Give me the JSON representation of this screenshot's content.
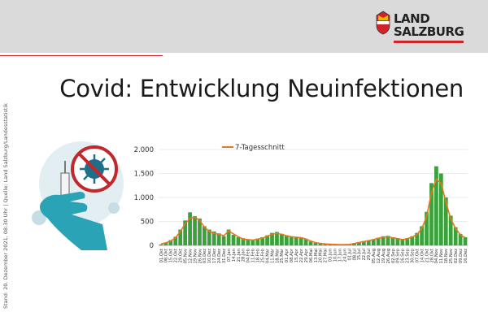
{
  "logo": {
    "line1": "LAND",
    "line2": "SALZBURG"
  },
  "title": "Covid: Entwicklung Neuinfektionen",
  "side_note": "Stand: 20. Dezember  2021, 08:30 Uhr | Quelle: Land Salzburg/Landesstatistik",
  "colors": {
    "bars": "#3aa23a",
    "line": "#e87722",
    "header": "#dadada",
    "brand_red": "#d2232a"
  },
  "chart_data": {
    "type": "bar",
    "title": "",
    "legend": [
      "7-Tagesschnitt"
    ],
    "legend_position": "top",
    "ylim": [
      0,
      2000
    ],
    "yticks": [
      0,
      500,
      1000,
      1500,
      2000
    ],
    "ytick_labels": [
      "0",
      "500",
      "1.000",
      "1.500",
      "2.000"
    ],
    "xlabels": [
      "01.Okt",
      "08.Okt",
      "15.Okt",
      "22.Okt",
      "29.Okt",
      "05.Nov",
      "12.Nov",
      "19.Nov",
      "26.Nov",
      "03.Dez",
      "10.Dez",
      "17.Dez",
      "24.Dez",
      "31.Dez",
      "07.Jan",
      "14.Jan",
      "21.Jan",
      "28.Jan",
      "04.Feb",
      "11.Feb",
      "18.Feb",
      "25.Feb",
      "04.Mar",
      "11.Mar",
      "18.Mar",
      "25.Mar",
      "01.Apr",
      "08.Apr",
      "15.Apr",
      "22.Apr",
      "29.Apr",
      "06.Mai",
      "13.Mai",
      "20.Mai",
      "27.Mai",
      "03.Jun",
      "10.Jun",
      "17.Jun",
      "24.Jun",
      "01.Jul",
      "08.Jul",
      "15.Jul",
      "22.Jul",
      "29.Jul",
      "05.Aug",
      "12.Aug",
      "19.Aug",
      "26.Aug",
      "02.Sep",
      "09.Sep",
      "16.Sep",
      "23.Sep",
      "30.Sep",
      "07.Okt",
      "14.Okt",
      "21.Okt",
      "28.Okt",
      "04.Nov",
      "11.Nov",
      "18.Nov",
      "25.Nov",
      "02.Dez",
      "09.Dez",
      "16.Dez"
    ],
    "series": [
      {
        "name": "7-Tagesschnitt",
        "kind": "line",
        "values": [
          30,
          55,
          90,
          160,
          290,
          450,
          560,
          590,
          520,
          380,
          290,
          250,
          230,
          200,
          300,
          240,
          180,
          130,
          120,
          110,
          130,
          150,
          190,
          230,
          250,
          230,
          200,
          180,
          170,
          160,
          130,
          90,
          60,
          40,
          30,
          25,
          20,
          15,
          15,
          20,
          40,
          60,
          80,
          100,
          120,
          150,
          170,
          180,
          160,
          140,
          120,
          140,
          170,
          230,
          350,
          600,
          1100,
          1380,
          1300,
          900,
          550,
          350,
          220,
          160
        ]
      },
      {
        "name": "",
        "kind": "bar",
        "values": [
          20,
          60,
          110,
          180,
          330,
          520,
          690,
          610,
          560,
          400,
          330,
          290,
          250,
          190,
          330,
          220,
          170,
          150,
          130,
          120,
          140,
          170,
          210,
          260,
          280,
          240,
          210,
          190,
          180,
          170,
          140,
          80,
          50,
          35,
          25,
          20,
          15,
          10,
          12,
          20,
          45,
          70,
          90,
          110,
          130,
          160,
          190,
          200,
          170,
          150,
          130,
          150,
          190,
          260,
          400,
          700,
          1300,
          1650,
          1500,
          1000,
          620,
          380,
          240,
          170
        ]
      }
    ]
  }
}
